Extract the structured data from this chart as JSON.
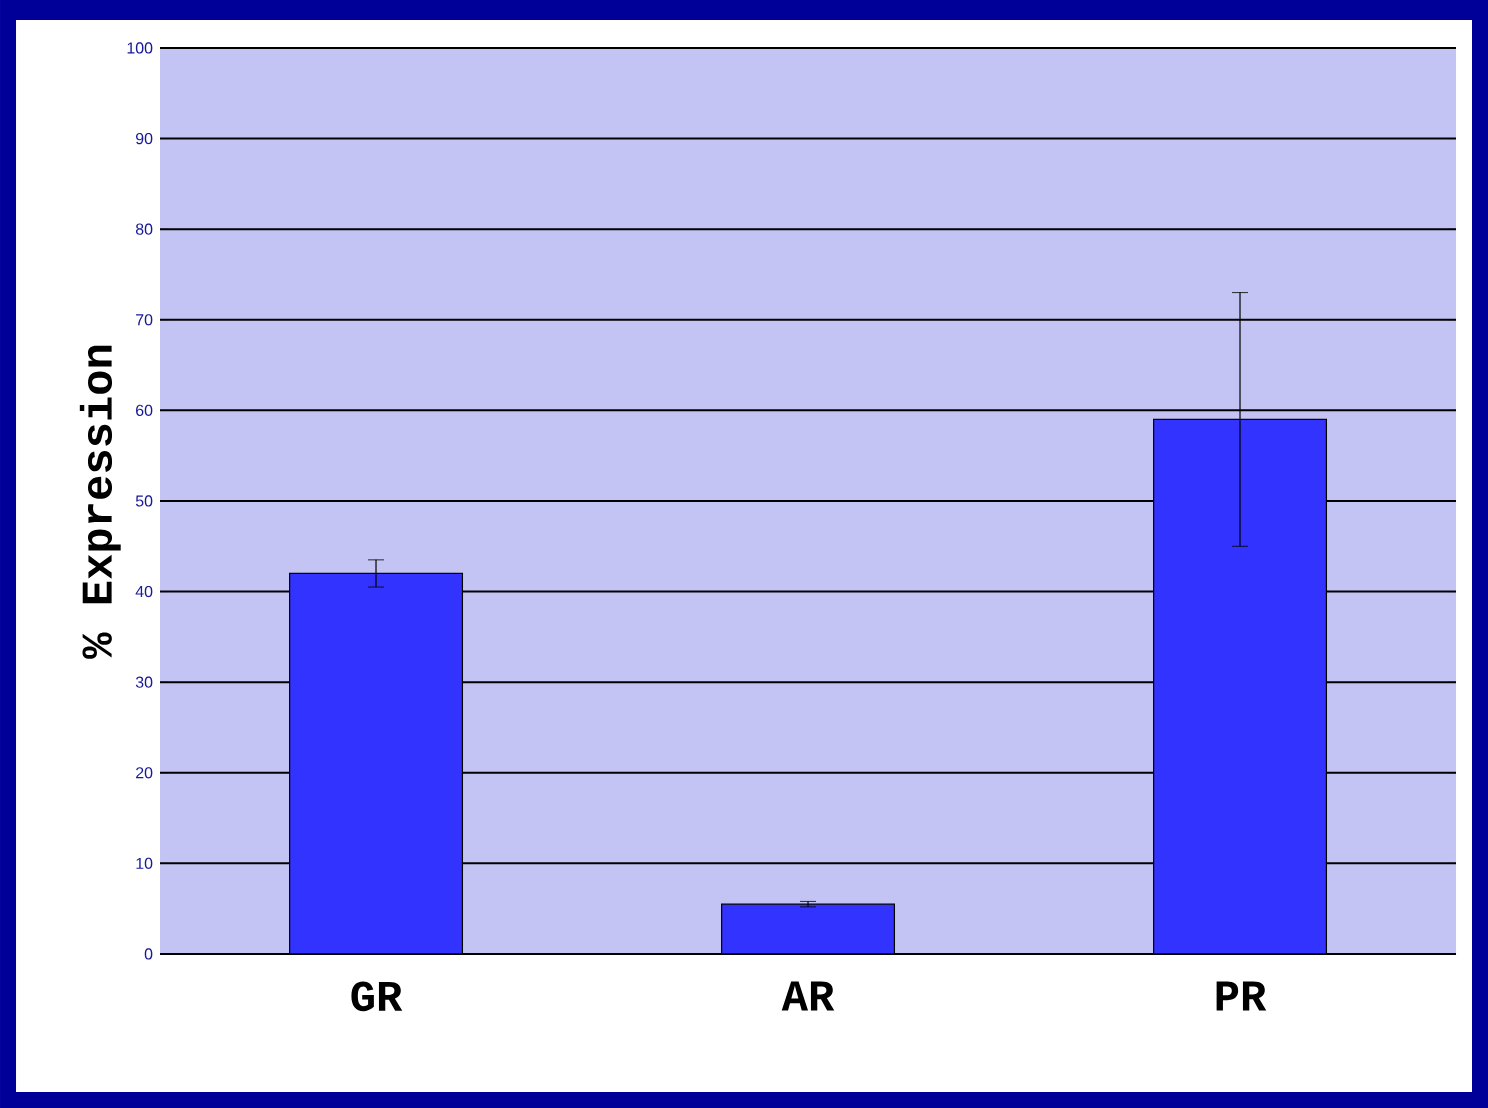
{
  "chart_data": {
    "type": "bar",
    "ylabel": "% Expression",
    "categories": [
      "GR",
      "AR",
      "PR"
    ],
    "values": [
      42,
      5.5,
      59
    ],
    "errors": [
      1.5,
      0.3,
      14
    ],
    "color": "#3333ff",
    "ylim": [
      0,
      100
    ],
    "yticks": [
      0,
      10,
      20,
      30,
      40,
      50,
      60,
      70,
      80,
      90,
      100
    ],
    "grid": "y"
  }
}
